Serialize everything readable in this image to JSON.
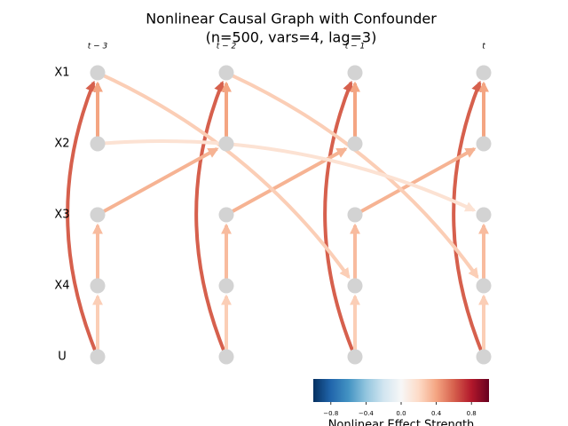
{
  "chart_data": {
    "type": "graph",
    "title": [
      "Nonlinear Causal Graph with Confounder",
      "(n=500, vars=4, lag=3)"
    ],
    "times": [
      "t − 3",
      "t − 2",
      "t − 1",
      "t"
    ],
    "variables": [
      "X1",
      "X2",
      "X3",
      "X4",
      "U"
    ],
    "links": [
      {
        "source": "U",
        "target": "X1",
        "lag": 0,
        "value": 0.6
      },
      {
        "source": "X2",
        "target": "X1",
        "lag": 0,
        "value": 0.4
      },
      {
        "source": "X4",
        "target": "X3",
        "lag": 0,
        "value": 0.32
      },
      {
        "source": "U",
        "target": "X4",
        "lag": 0,
        "value": 0.25
      },
      {
        "source": "X3",
        "target": "X2",
        "lag": 1,
        "value": 0.35
      },
      {
        "source": "X1",
        "target": "X4",
        "lag": 2,
        "value": 0.25
      },
      {
        "source": "X2",
        "target": "X3",
        "lag": 3,
        "value": 0.15
      }
    ],
    "node_color": "#d3d3d3",
    "colorbar": {
      "label": "Nonlinear Effect Strength",
      "lim": [
        -1,
        1
      ],
      "ticks": [
        {
          "value": -0.8,
          "label": "−0.8"
        },
        {
          "value": -0.4,
          "label": "−0.4"
        },
        {
          "value": 0,
          "label": "0.0"
        },
        {
          "value": 0.4,
          "label": "0.4"
        },
        {
          "value": 0.8,
          "label": "0.8"
        }
      ]
    }
  }
}
